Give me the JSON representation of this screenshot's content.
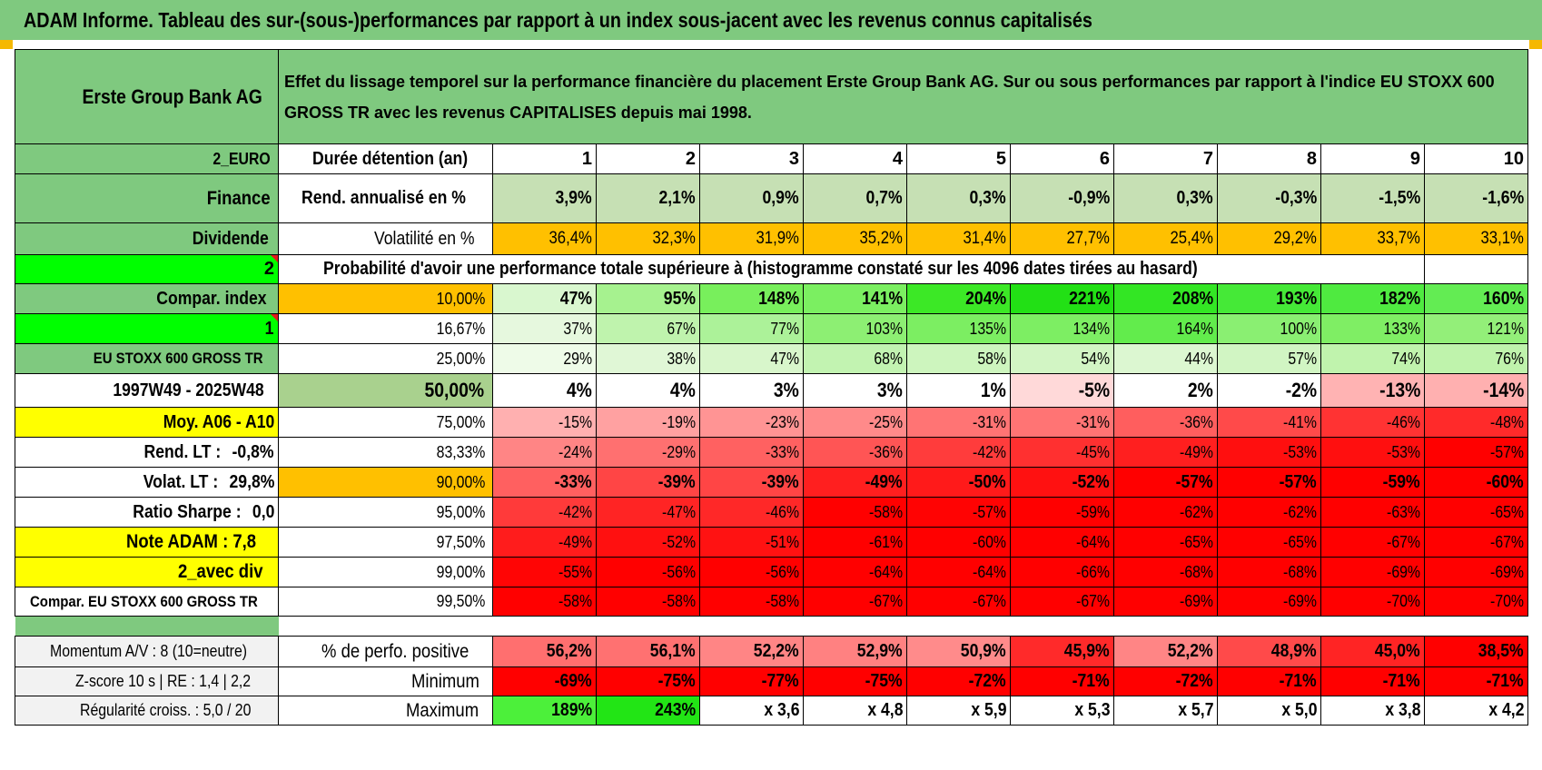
{
  "title": "ADAM Informe. Tableau des sur-(sous-)performances par rapport à un index sous-jacent avec les revenus connus capitalisés",
  "left": {
    "company": "Erste Group Bank AG",
    "currency": "2_EURO",
    "sector": "Finance",
    "dividend": "Dividende",
    "prob_flag": "2",
    "compar_index": "Compar. index",
    "flag_1": "1",
    "index_name": "EU STOXX 600 GROSS TR",
    "period": "1997W49 - 2025W48",
    "moy": "Moy. A06 - A10",
    "rend_lt_label": "Rend. LT :",
    "rend_lt_value": "-0,8%",
    "volat_lt_label": "Volat. LT :",
    "volat_lt_value": "29,8%",
    "sharpe_label": "Ratio Sharpe :",
    "sharpe_value": "0,0",
    "note": "Note ADAM : 7,8",
    "avec_div": "2_avec div",
    "compar_long": "Compar. EU STOXX 600 GROSS TR",
    "momentum": "Momentum A/V : 8 (10=neutre)",
    "zscore": "Z-score 10 s | RE : 1,4 | 2,2",
    "regularite": "Régularité croiss. : 5,0 / 20"
  },
  "header_text": "Effet du lissage temporel sur la performance financière du placement Erste Group Bank AG. Sur ou sous performances par rapport à l'indice EU STOXX 600 GROSS TR avec les revenus CAPITALISES depuis mai 1998.",
  "labels": {
    "duree": "Durée détention (an)",
    "rend": "Rend. annualisé en %",
    "volat": "Volatilité en %",
    "proba": "Probabilité d'avoir une performance totale supérieure à (histogramme constaté sur les 4096 dates tirées au hasard)",
    "perfo_pos": "% de perfo. positive",
    "minimum": "Minimum",
    "maximum": "Maximum"
  },
  "years": [
    "1",
    "2",
    "3",
    "4",
    "5",
    "6",
    "7",
    "8",
    "9",
    "10"
  ],
  "rend": [
    "3,9%",
    "2,1%",
    "0,9%",
    "0,7%",
    "0,3%",
    "-0,9%",
    "0,3%",
    "-0,3%",
    "-1,5%",
    "-1,6%"
  ],
  "volat": [
    "36,4%",
    "32,3%",
    "31,9%",
    "35,2%",
    "31,4%",
    "27,7%",
    "25,4%",
    "29,2%",
    "33,7%",
    "33,1%"
  ],
  "prob_rows": [
    {
      "threshold": "10,00%",
      "values": [
        "47%",
        "95%",
        "148%",
        "141%",
        "204%",
        "221%",
        "208%",
        "193%",
        "182%",
        "160%"
      ]
    },
    {
      "threshold": "16,67%",
      "values": [
        "37%",
        "67%",
        "77%",
        "103%",
        "135%",
        "134%",
        "164%",
        "100%",
        "133%",
        "121%"
      ]
    },
    {
      "threshold": "25,00%",
      "values": [
        "29%",
        "38%",
        "47%",
        "68%",
        "58%",
        "54%",
        "44%",
        "57%",
        "74%",
        "76%"
      ]
    },
    {
      "threshold": "50,00%",
      "values": [
        "4%",
        "4%",
        "3%",
        "3%",
        "1%",
        "-5%",
        "2%",
        "-2%",
        "-13%",
        "-14%"
      ]
    },
    {
      "threshold": "75,00%",
      "values": [
        "-15%",
        "-19%",
        "-23%",
        "-25%",
        "-31%",
        "-31%",
        "-36%",
        "-41%",
        "-46%",
        "-48%"
      ]
    },
    {
      "threshold": "83,33%",
      "values": [
        "-24%",
        "-29%",
        "-33%",
        "-36%",
        "-42%",
        "-45%",
        "-49%",
        "-53%",
        "-53%",
        "-57%"
      ]
    },
    {
      "threshold": "90,00%",
      "values": [
        "-33%",
        "-39%",
        "-39%",
        "-49%",
        "-50%",
        "-52%",
        "-57%",
        "-57%",
        "-59%",
        "-60%"
      ]
    },
    {
      "threshold": "95,00%",
      "values": [
        "-42%",
        "-47%",
        "-46%",
        "-58%",
        "-57%",
        "-59%",
        "-62%",
        "-62%",
        "-63%",
        "-65%"
      ]
    },
    {
      "threshold": "97,50%",
      "values": [
        "-49%",
        "-52%",
        "-51%",
        "-61%",
        "-60%",
        "-64%",
        "-65%",
        "-65%",
        "-67%",
        "-67%"
      ]
    },
    {
      "threshold": "99,00%",
      "values": [
        "-55%",
        "-56%",
        "-56%",
        "-64%",
        "-64%",
        "-66%",
        "-68%",
        "-68%",
        "-69%",
        "-69%"
      ]
    },
    {
      "threshold": "99,50%",
      "values": [
        "-58%",
        "-58%",
        "-58%",
        "-67%",
        "-67%",
        "-67%",
        "-69%",
        "-69%",
        "-70%",
        "-70%"
      ]
    }
  ],
  "perfo_pos": [
    "56,2%",
    "56,1%",
    "52,2%",
    "52,9%",
    "50,9%",
    "45,9%",
    "52,2%",
    "48,9%",
    "45,0%",
    "38,5%"
  ],
  "minimum": [
    "-69%",
    "-75%",
    "-77%",
    "-75%",
    "-72%",
    "-71%",
    "-72%",
    "-71%",
    "-71%",
    "-71%"
  ],
  "maximum": [
    "189%",
    "243%",
    "x 3,6",
    "x 4,8",
    "x 5,9",
    "x 5,3",
    "x 5,7",
    "x 5,0",
    "x 3,8",
    "x 4,2"
  ],
  "colors": {
    "header_green": "#7fc97f",
    "orange": "#ffc000",
    "light_green": "#c6e0b4",
    "bright_green": "#00ff00",
    "red": "#ff0000",
    "label_red": "#e41a1c",
    "yellow": "#ffff00"
  }
}
